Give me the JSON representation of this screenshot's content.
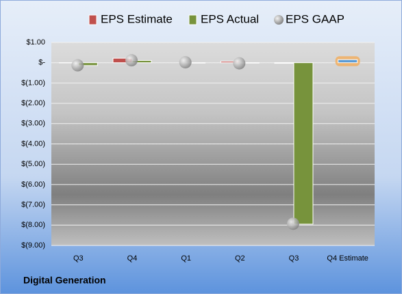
{
  "chart_data": {
    "type": "bar",
    "caption": "Digital Generation",
    "categories": [
      "Q3",
      "Q4",
      "Q1",
      "Q2",
      "Q3",
      "Q4 Estimate"
    ],
    "series": [
      {
        "name": "EPS Estimate",
        "color": "#c0504d",
        "values": [
          -0.01,
          0.22,
          0.0,
          0.07,
          -0.03,
          0.15
        ],
        "colors": [
          "#c0504d",
          "#c0504d",
          "#c0504d",
          "#c0504d",
          "#c0504d",
          "#5b9bd5"
        ]
      },
      {
        "name": "EPS Actual",
        "color": "#77933c",
        "values": [
          -0.14,
          0.11,
          -0.02,
          -0.02,
          -7.95,
          null
        ]
      },
      {
        "name": "EPS GAAP",
        "color": "#a6a6a6",
        "values": [
          -0.13,
          0.12,
          0.02,
          -0.03,
          -7.93,
          null
        ]
      }
    ],
    "ylim": [
      -9,
      1
    ],
    "yticks": [
      {
        "value": 1,
        "label": "$1.00"
      },
      {
        "value": 0,
        "label": "$-"
      },
      {
        "value": -1,
        "label": "$(1.00)"
      },
      {
        "value": -2,
        "label": "$(2.00)"
      },
      {
        "value": -3,
        "label": "$(3.00)"
      },
      {
        "value": -4,
        "label": "$(4.00)"
      },
      {
        "value": -5,
        "label": "$(5.00)"
      },
      {
        "value": -6,
        "label": "$(6.00)"
      },
      {
        "value": -7,
        "label": "$(7.00)"
      },
      {
        "value": -8,
        "label": "$(8.00)"
      },
      {
        "value": -9,
        "label": "$(9.00)"
      }
    ],
    "grid": true
  }
}
